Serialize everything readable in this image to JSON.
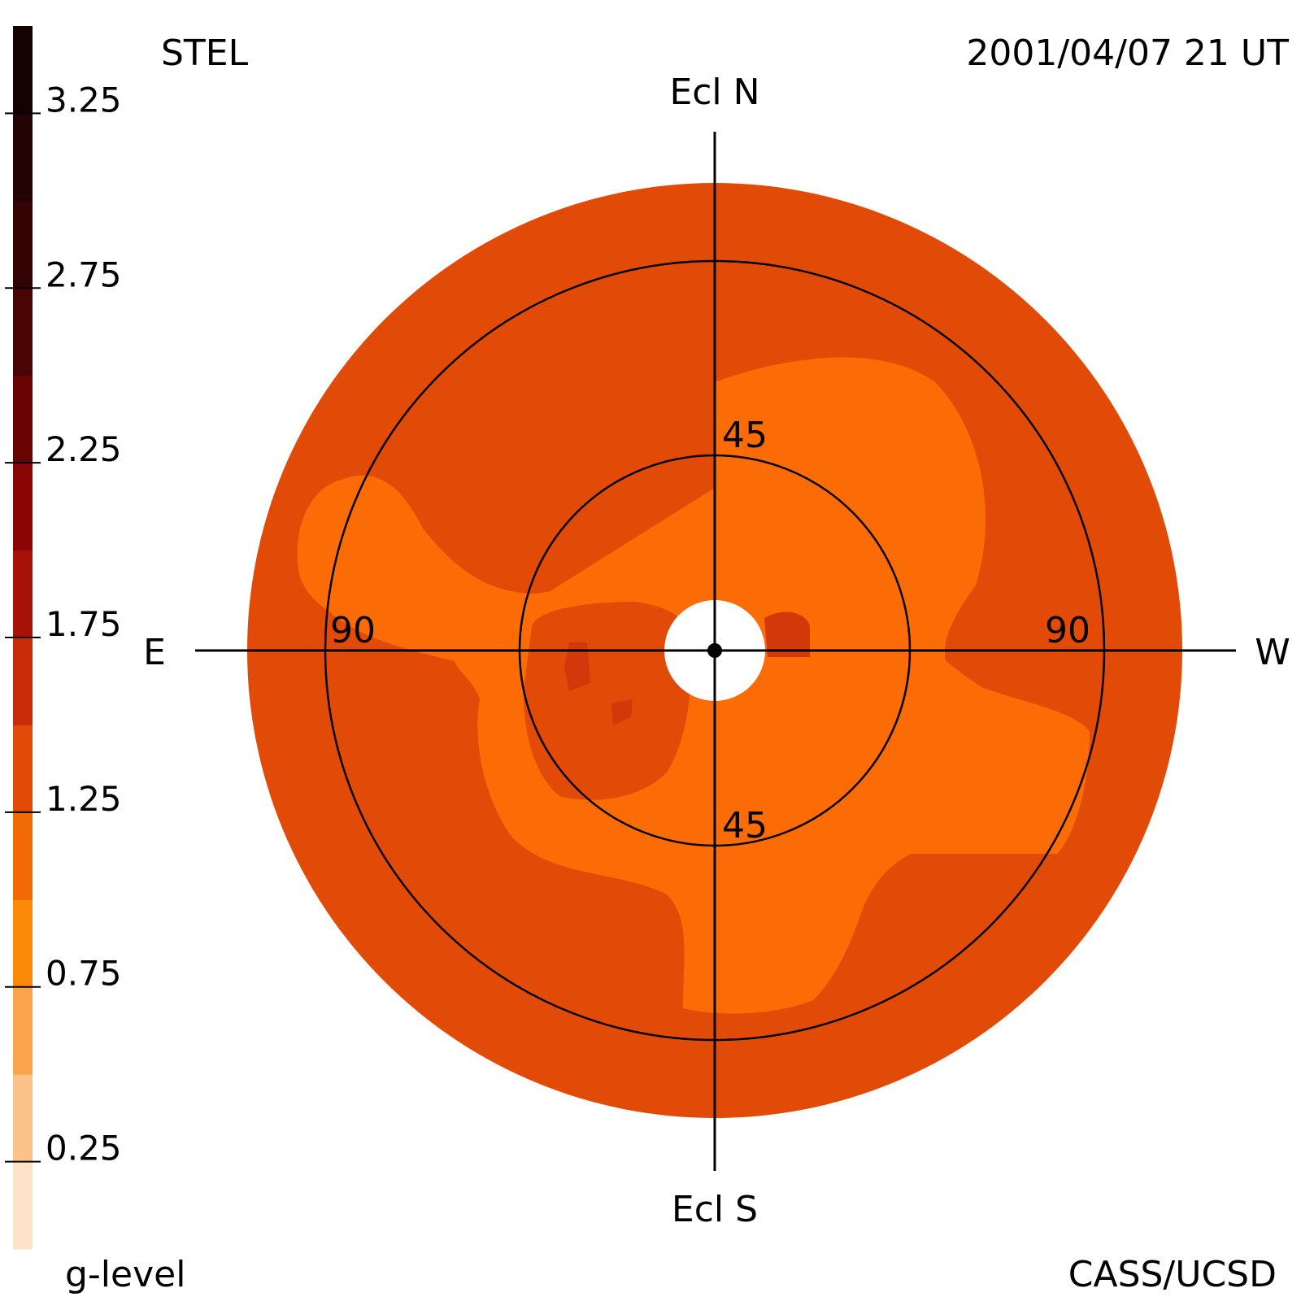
{
  "header": {
    "instrument": "STEL",
    "datetime": "2001/04/07 21 UT",
    "credit": "CASS/UCSD"
  },
  "chart_data": {
    "type": "heatmap",
    "projection": "fisheye sky map centered on the Sun",
    "directions": {
      "north": "Ecl N",
      "south": "Ecl S",
      "east": "E",
      "west": "W"
    },
    "ring_labels": {
      "inner_top": "45",
      "inner_bottom": "45",
      "outer_left": "90",
      "outer_right": "90"
    },
    "rings_elongation_deg": [
      45,
      90
    ],
    "colorbar": {
      "label": "g-level",
      "range": [
        0,
        3.5
      ],
      "ticks": [
        "0.25",
        "0.75",
        "1.25",
        "1.75",
        "2.25",
        "2.75",
        "3.25"
      ],
      "tick_values": [
        0.25,
        0.75,
        1.25,
        1.75,
        2.25,
        2.75,
        3.25
      ],
      "bins": [
        {
          "from": 0.0,
          "to": 0.25,
          "color": "#fde3c8"
        },
        {
          "from": 0.25,
          "to": 0.5,
          "color": "#fbc28a"
        },
        {
          "from": 0.5,
          "to": 0.75,
          "color": "#fba44e"
        },
        {
          "from": 0.75,
          "to": 1.0,
          "color": "#fb8a08"
        },
        {
          "from": 1.0,
          "to": 1.25,
          "color": "#f26a04"
        },
        {
          "from": 1.25,
          "to": 1.5,
          "color": "#e24a08"
        },
        {
          "from": 1.5,
          "to": 1.75,
          "color": "#c82c08"
        },
        {
          "from": 1.75,
          "to": 2.0,
          "color": "#a81208"
        },
        {
          "from": 2.0,
          "to": 2.25,
          "color": "#8a0606"
        },
        {
          "from": 2.25,
          "to": 2.5,
          "color": "#6a0404"
        },
        {
          "from": 2.5,
          "to": 2.75,
          "color": "#4a0404"
        },
        {
          "from": 2.75,
          "to": 3.0,
          "color": "#340404"
        },
        {
          "from": 3.0,
          "to": 3.25,
          "color": "#220404"
        },
        {
          "from": 3.25,
          "to": 3.5,
          "color": "#120202"
        }
      ]
    },
    "field_colors": {
      "background": "#e24a08",
      "lobes": "#fb6c06",
      "spots": "#d2380a",
      "sun_occulter": "#ffffff"
    }
  }
}
